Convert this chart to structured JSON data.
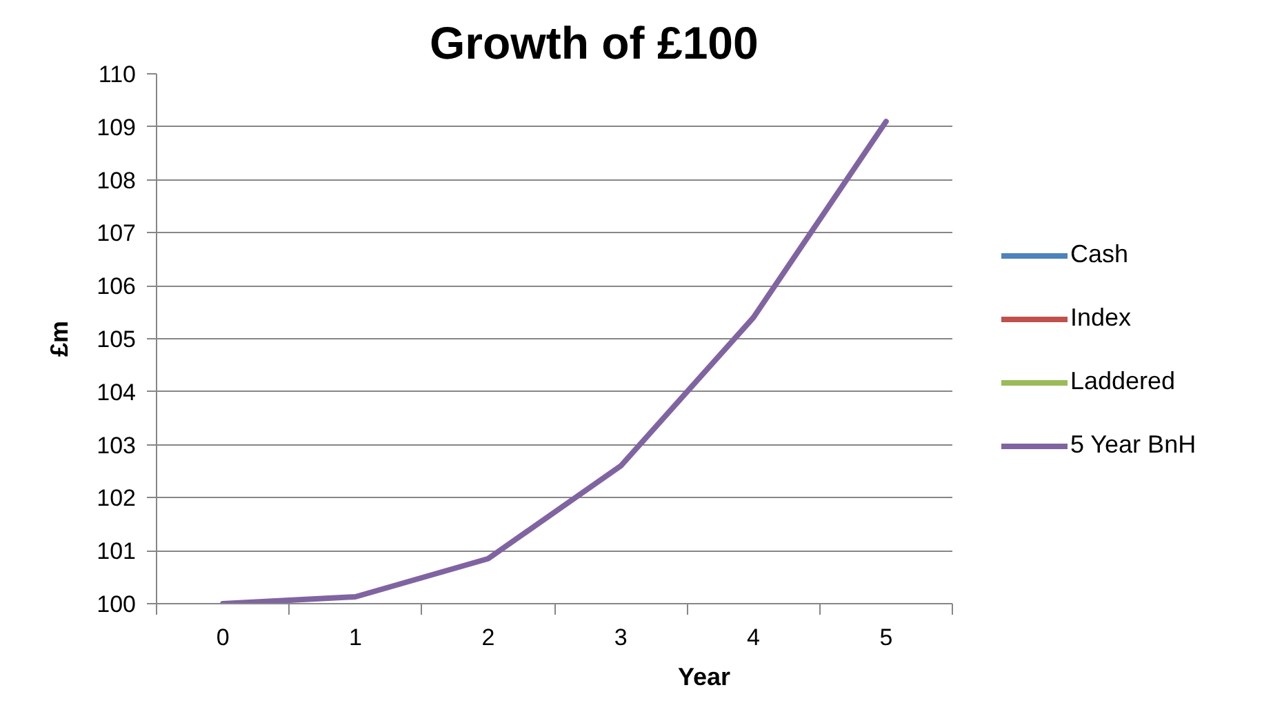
{
  "chart_data": {
    "type": "line",
    "title": "Growth of £100",
    "xlabel": "Year",
    "ylabel": "£m",
    "categories": [
      "0",
      "1",
      "2",
      "3",
      "4",
      "5"
    ],
    "ylim": [
      100,
      110
    ],
    "yticks": [
      100,
      101,
      102,
      103,
      104,
      105,
      106,
      107,
      108,
      109,
      110
    ],
    "grid": "y",
    "legend": "right",
    "line_style": "solid",
    "series": [
      {
        "name": "Cash",
        "color": "#4f81bd",
        "values": [
          null,
          null,
          null,
          null,
          null,
          null
        ]
      },
      {
        "name": "Index",
        "color": "#c0504d",
        "values": [
          null,
          null,
          null,
          null,
          null,
          null
        ]
      },
      {
        "name": "Laddered",
        "color": "#9bbb59",
        "values": [
          null,
          null,
          null,
          null,
          null,
          null
        ]
      },
      {
        "name": "5 Year BnH",
        "color": "#8064a2",
        "values": [
          100.0,
          100.13,
          100.85,
          102.6,
          105.4,
          109.1
        ]
      }
    ]
  }
}
